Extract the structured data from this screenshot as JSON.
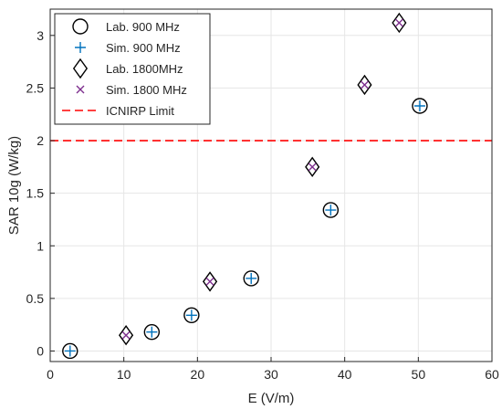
{
  "chart_data": {
    "type": "scatter",
    "xlabel": "E (V/m)",
    "ylabel": "SAR 10g (W/kg)",
    "xlim": [
      0,
      60
    ],
    "ylim": [
      -0.1,
      3.25
    ],
    "xticks": [
      0,
      10,
      20,
      30,
      40,
      50,
      60
    ],
    "yticks": [
      0,
      0.5,
      1,
      1.5,
      2,
      2.5,
      3
    ],
    "xtick_labels": [
      "0",
      "10",
      "20",
      "30",
      "40",
      "50",
      "60"
    ],
    "ytick_labels": [
      "0",
      "0.5",
      "1",
      "1.5",
      "2",
      "2.5",
      "3"
    ],
    "grid": true,
    "legend_position": "top-left",
    "series": [
      {
        "name": "Lab. 900 MHz",
        "marker": "circle",
        "color": "#000000",
        "x": [
          2.7,
          13.8,
          19.2,
          27.3,
          38.1,
          50.2
        ],
        "y": [
          0.0,
          0.18,
          0.34,
          0.69,
          1.34,
          2.33
        ]
      },
      {
        "name": "Sim. 900 MHz",
        "marker": "plus",
        "color": "#0072BD",
        "x": [
          2.7,
          13.8,
          19.2,
          27.3,
          38.1,
          50.2
        ],
        "y": [
          0.0,
          0.18,
          0.34,
          0.69,
          1.34,
          2.33
        ]
      },
      {
        "name": "Lab. 1800MHz",
        "marker": "diamond",
        "color": "#000000",
        "x": [
          10.3,
          21.7,
          35.6,
          42.7,
          47.4
        ],
        "y": [
          0.15,
          0.66,
          1.75,
          2.53,
          3.12
        ]
      },
      {
        "name": "Sim. 1800 MHz",
        "marker": "x",
        "color": "#7E2F8E",
        "x": [
          10.3,
          21.7,
          35.6,
          42.7,
          47.4
        ],
        "y": [
          0.15,
          0.66,
          1.75,
          2.53,
          3.12
        ]
      }
    ],
    "reference_lines": [
      {
        "name": "ICNIRP Limit",
        "y": 2,
        "color": "#FF0000",
        "style": "dashed"
      }
    ]
  }
}
